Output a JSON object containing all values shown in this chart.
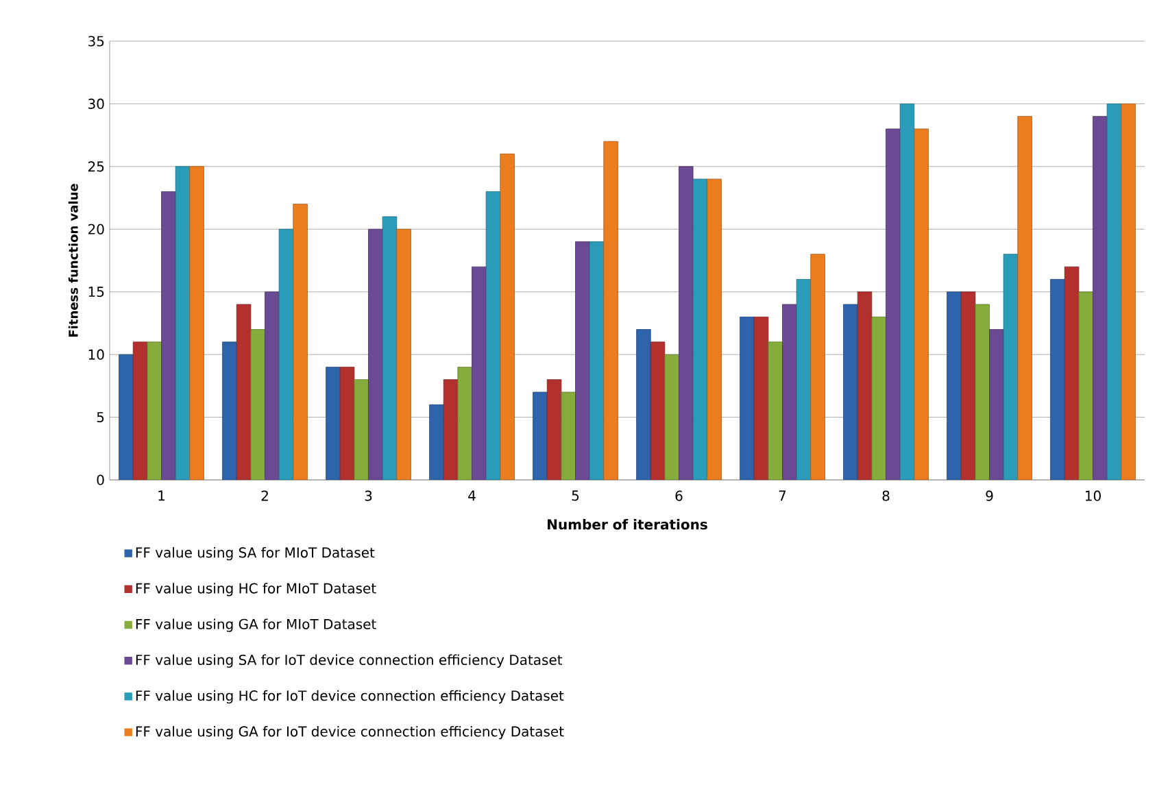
{
  "chart_data": {
    "type": "bar",
    "xlabel": "Number of iterations",
    "ylabel": "Fitness function value",
    "categories": [
      "1",
      "2",
      "3",
      "4",
      "5",
      "6",
      "7",
      "8",
      "9",
      "10"
    ],
    "ylim": [
      0,
      35
    ],
    "yticks": [
      0,
      5,
      10,
      15,
      20,
      25,
      30,
      35
    ],
    "grid": "y",
    "legend": "bottom left",
    "series": [
      {
        "name": "FF value using  SA for MIoT Dataset",
        "color": "#2e64ab",
        "values": [
          10,
          11,
          9,
          6,
          7,
          12,
          13,
          14,
          15,
          16
        ]
      },
      {
        "name": "FF value using  HC for MIoT Dataset",
        "color": "#b2302e",
        "values": [
          11,
          14,
          9,
          8,
          8,
          11,
          13,
          15,
          15,
          17
        ]
      },
      {
        "name": "FF value using  GA for MIoT Dataset",
        "color": "#86ac3c",
        "values": [
          11,
          12,
          8,
          9,
          7,
          10,
          11,
          13,
          14,
          15
        ]
      },
      {
        "name": "FF value using SA for IoT device connection efficiency Dataset",
        "color": "#6a4a92",
        "values": [
          23,
          15,
          20,
          17,
          19,
          25,
          14,
          28,
          12,
          29
        ]
      },
      {
        "name": "FF value using HC for IoT device connection efficiency Dataset",
        "color": "#2a9bb8",
        "values": [
          25,
          20,
          21,
          23,
          19,
          24,
          16,
          30,
          18,
          30
        ]
      },
      {
        "name": "FF value using GA for IoT device connection efficiency Dataset",
        "color": "#ec7d1e",
        "values": [
          25,
          22,
          20,
          26,
          27,
          24,
          18,
          28,
          29,
          30
        ]
      }
    ]
  }
}
